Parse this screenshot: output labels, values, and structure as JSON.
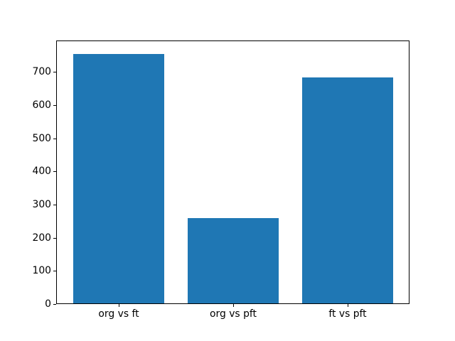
{
  "figure": {
    "background": "#ffffff",
    "axis_color": "#000000",
    "tick_color": "#000000",
    "label_color": "#000000"
  },
  "chart_data": {
    "type": "bar",
    "title": "",
    "xlabel": "",
    "ylabel": "",
    "categories": [
      "org vs ft",
      "org vs pft",
      "ft vs pft"
    ],
    "values": [
      755,
      260,
      684
    ],
    "bar_color": "#1f77b4",
    "ylim": [
      0,
      793
    ],
    "yticks": [
      0,
      100,
      200,
      300,
      400,
      500,
      600,
      700
    ],
    "grid": false,
    "legend": "none"
  }
}
